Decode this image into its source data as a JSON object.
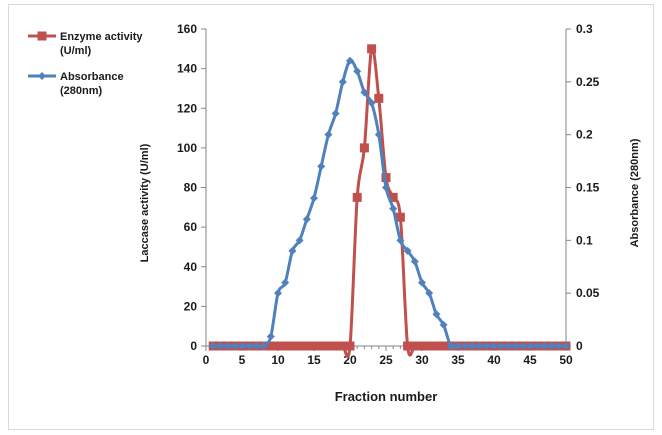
{
  "chart_data": {
    "type": "line",
    "xlabel": "Fraction number",
    "ylabel": "Laccase activity (U/ml)",
    "y2label": "Absorbance (280nm)",
    "xlim": [
      0,
      50
    ],
    "ylim": [
      0,
      160
    ],
    "y2lim": [
      0,
      0.3
    ],
    "x_ticks": [
      "0",
      "5",
      "10",
      "15",
      "20",
      "25",
      "30",
      "35",
      "40",
      "45",
      "50"
    ],
    "y_ticks": [
      "0",
      "20",
      "40",
      "60",
      "80",
      "100",
      "120",
      "140",
      "160"
    ],
    "y2_ticks": [
      "0",
      "0.05",
      "0.1",
      "0.15",
      "0.2",
      "0.25",
      "0.3"
    ],
    "grid": false,
    "legend": "top-left, outside plot",
    "series": [
      {
        "name": "Enzyme activity (U/ml)",
        "legend_lines": [
          "Enzyme activity",
          "(U/ml)"
        ],
        "axis": "left",
        "marker": "square",
        "color": "#c0504d",
        "x": [
          1,
          2,
          3,
          4,
          5,
          6,
          7,
          8,
          9,
          10,
          11,
          12,
          13,
          14,
          15,
          16,
          17,
          18,
          19,
          20,
          21,
          22,
          23,
          24,
          25,
          26,
          27,
          28,
          29,
          30,
          31,
          32,
          33,
          34,
          35,
          36,
          37,
          38,
          39,
          40,
          41,
          42,
          43,
          44,
          45,
          46,
          47,
          48,
          49,
          50
        ],
        "y": [
          0,
          0,
          0,
          0,
          0,
          0,
          0,
          0,
          0,
          0,
          0,
          0,
          0,
          0,
          0,
          0,
          0,
          0,
          0,
          0,
          75,
          100,
          150,
          125,
          85,
          75,
          65,
          0,
          0,
          0,
          0,
          0,
          0,
          0,
          0,
          0,
          0,
          0,
          0,
          0,
          0,
          0,
          0,
          0,
          0,
          0,
          0,
          0,
          0,
          0
        ]
      },
      {
        "name": "Absorbance (280nm)",
        "legend_lines": [
          "Absorbance",
          "(280nm)"
        ],
        "axis": "right",
        "marker": "diamond",
        "color": "#4f81bd",
        "x": [
          1,
          2,
          3,
          4,
          5,
          6,
          7,
          8,
          9,
          10,
          11,
          12,
          13,
          14,
          15,
          16,
          17,
          18,
          19,
          20,
          21,
          22,
          23,
          24,
          25,
          26,
          27,
          28,
          29,
          30,
          31,
          32,
          33,
          34,
          35,
          36,
          37,
          38,
          39,
          40,
          41,
          42,
          43,
          44,
          45,
          46,
          47,
          48,
          49,
          50
        ],
        "y": [
          0,
          0,
          0,
          0,
          0,
          0,
          0,
          0,
          0.009,
          0.05,
          0.06,
          0.09,
          0.1,
          0.12,
          0.14,
          0.17,
          0.2,
          0.22,
          0.25,
          0.27,
          0.26,
          0.24,
          0.23,
          0.2,
          0.15,
          0.13,
          0.1,
          0.09,
          0.08,
          0.06,
          0.05,
          0.03,
          0.02,
          0,
          0,
          0,
          0,
          0,
          0,
          0,
          0,
          0,
          0,
          0,
          0,
          0,
          0,
          0,
          0,
          0
        ]
      }
    ]
  }
}
